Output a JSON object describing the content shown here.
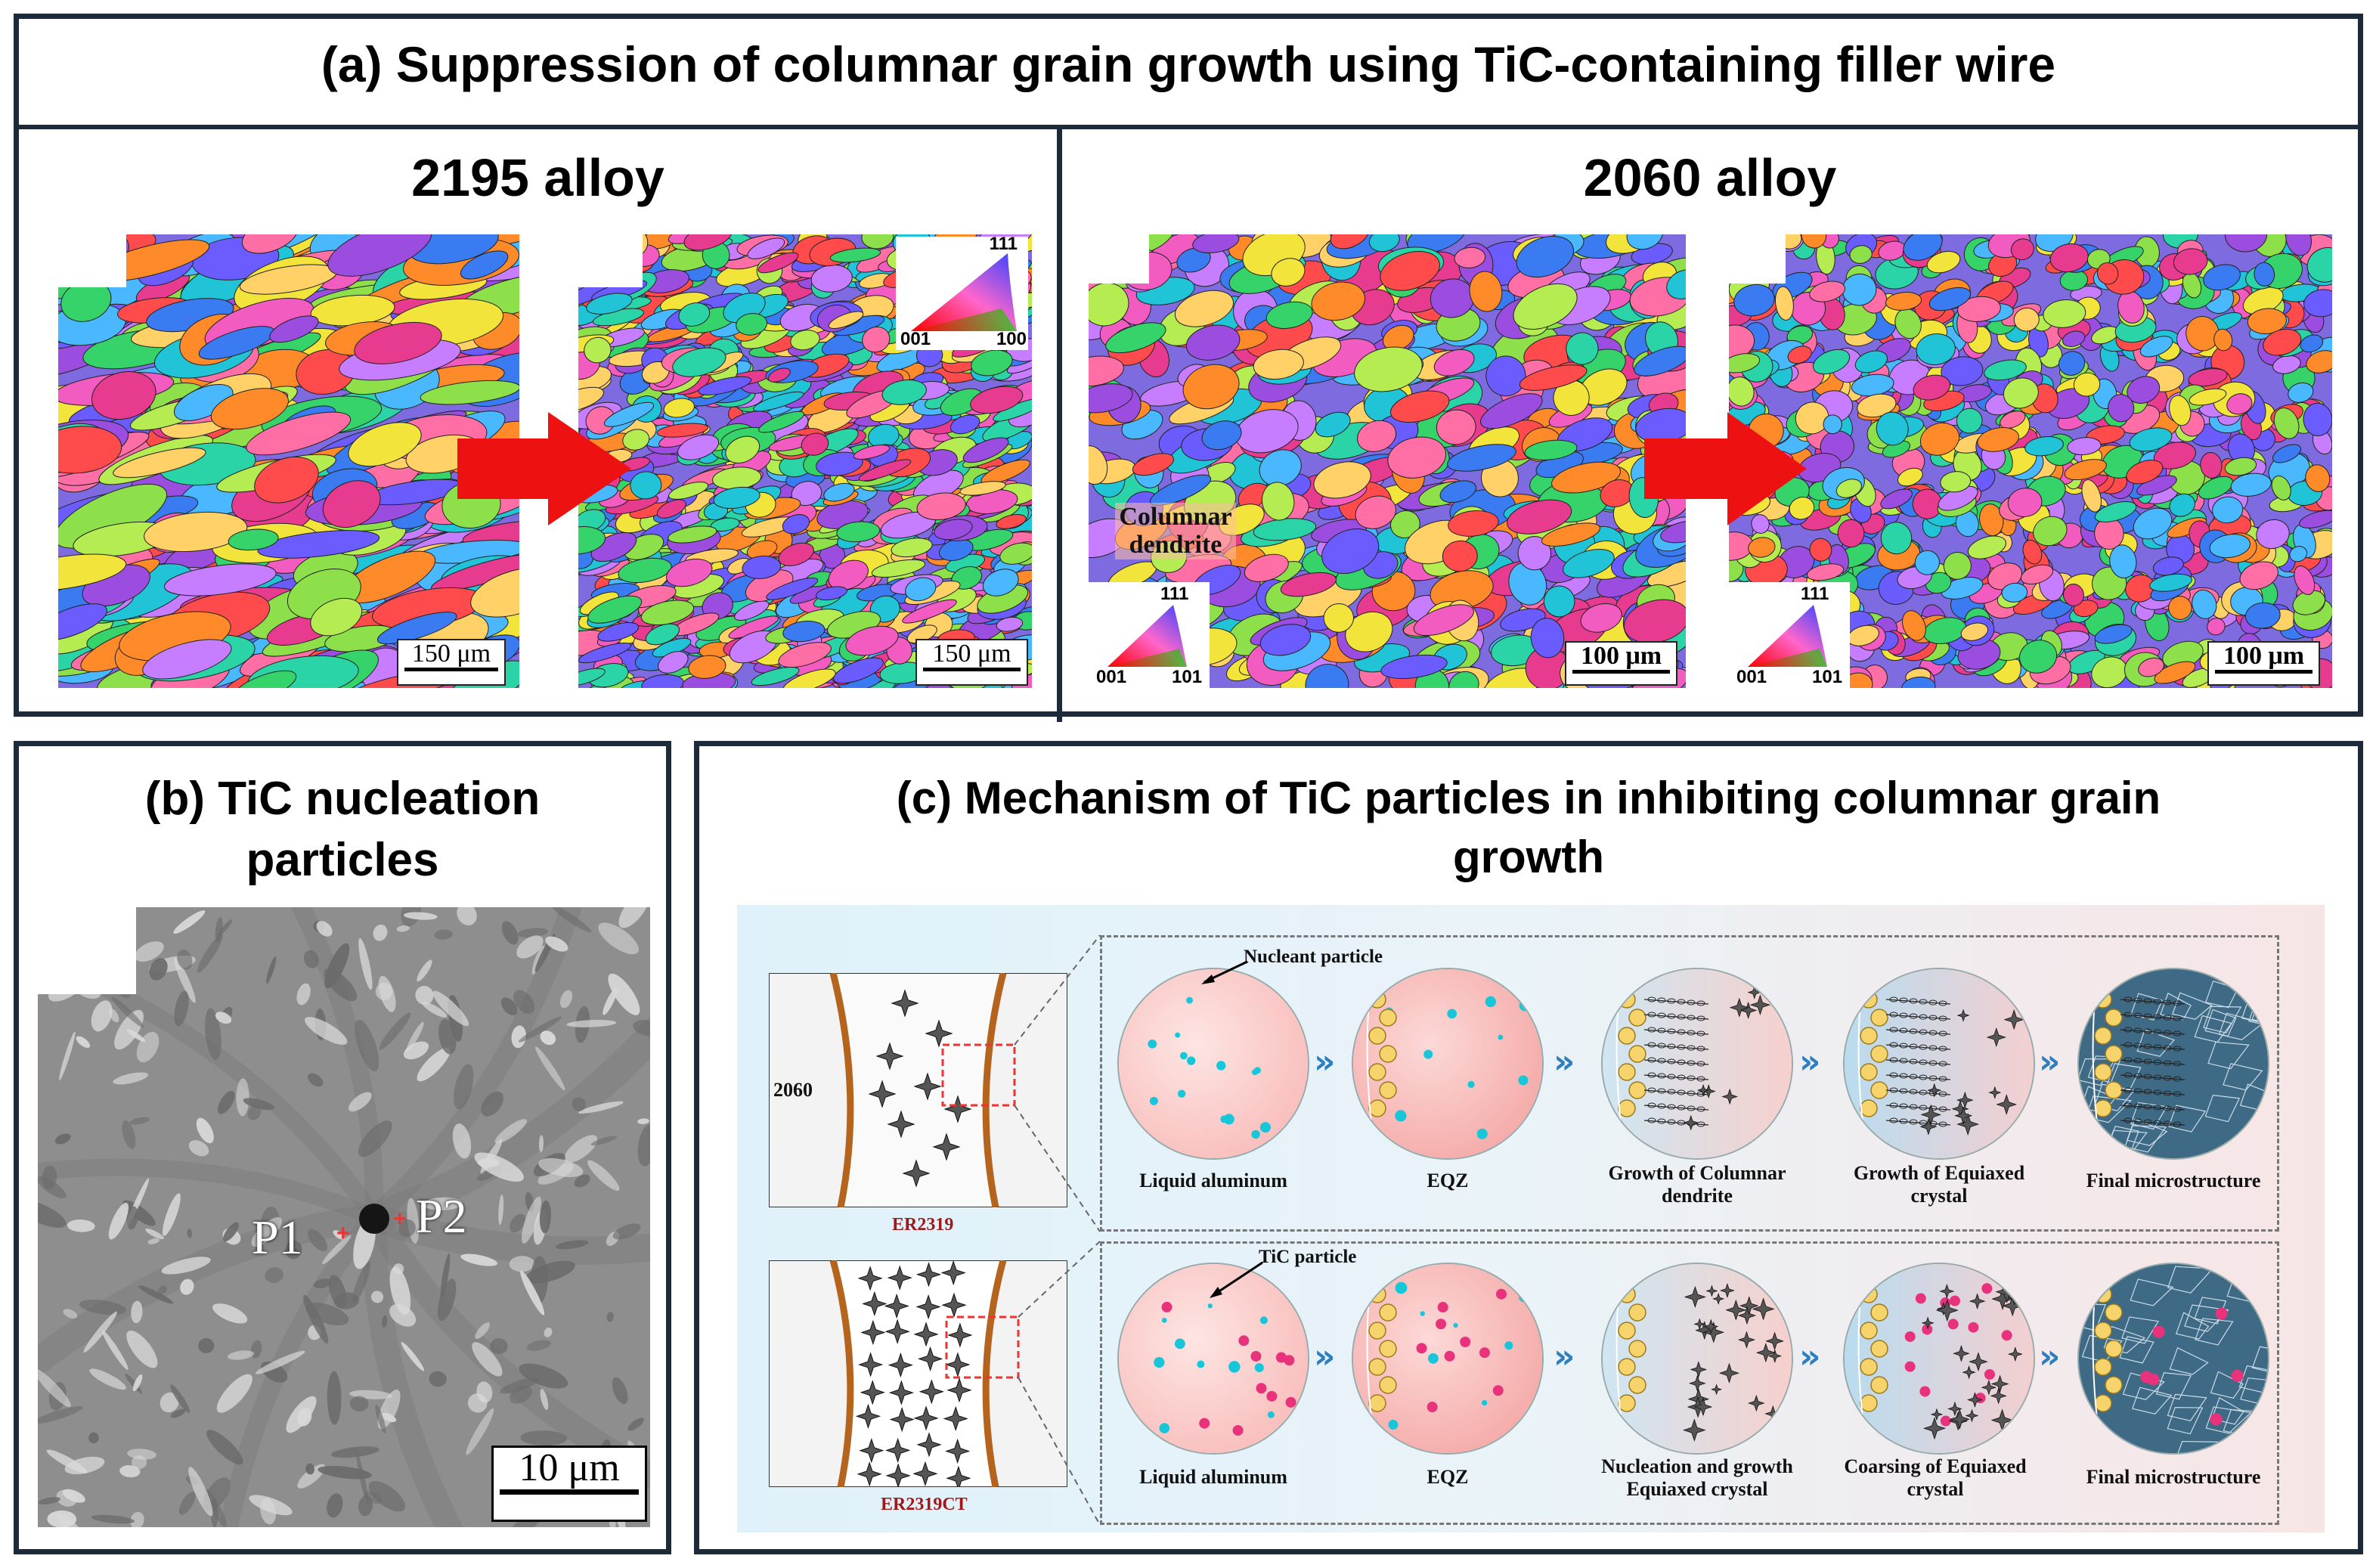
{
  "panel_a": {
    "title": "(a) Suppression of columnar grain growth using TiC-containing filler wire",
    "left": {
      "heading": "2195 alloy",
      "scale_left": "150 μm",
      "scale_right": "150 μm",
      "legend": {
        "top": "111",
        "left": "001",
        "right": "100"
      }
    },
    "right": {
      "heading": "2060 alloy",
      "scale_left": "100 μm",
      "scale_right": "100 μm",
      "annotation_line1": "Columnar",
      "annotation_line2": "dendrite",
      "legend": {
        "top": "111",
        "left": "001",
        "right": "101"
      }
    }
  },
  "panel_b": {
    "title_line1": "(b) TiC nucleation",
    "title_line2": "particles",
    "p1": "P1",
    "p2": "P2",
    "scale": "10 μm"
  },
  "panel_c": {
    "title_line1": "(c) Mechanism of TiC particles in inhibiting columnar grain",
    "title_line2": "growth",
    "row1": {
      "alloy": "2060",
      "wire": "ER2319",
      "callout": "Nucleant particle",
      "stages": [
        "Liquid aluminum",
        "EQZ",
        "Growth of Columnar dendrite",
        "Growth of Equiaxed crystal",
        "Final microstructure"
      ]
    },
    "row2": {
      "wire": "ER2319CT",
      "callout": "TiC particle",
      "stages": [
        "Liquid aluminum",
        "EQZ",
        "Nucleation and growth Equiaxed crystal",
        "Coarsing of Equiaxed crystal",
        "Final microstructure"
      ]
    }
  },
  "colors": {
    "border": "#1c2a3a",
    "arrow": "#ee1111",
    "chevron": "#2d7fc0",
    "wire_label": "#a01818"
  },
  "icons": [
    "red-arrow-icon",
    "ipf-legend-icon",
    "chevron-icon",
    "tic-particle-icon"
  ]
}
